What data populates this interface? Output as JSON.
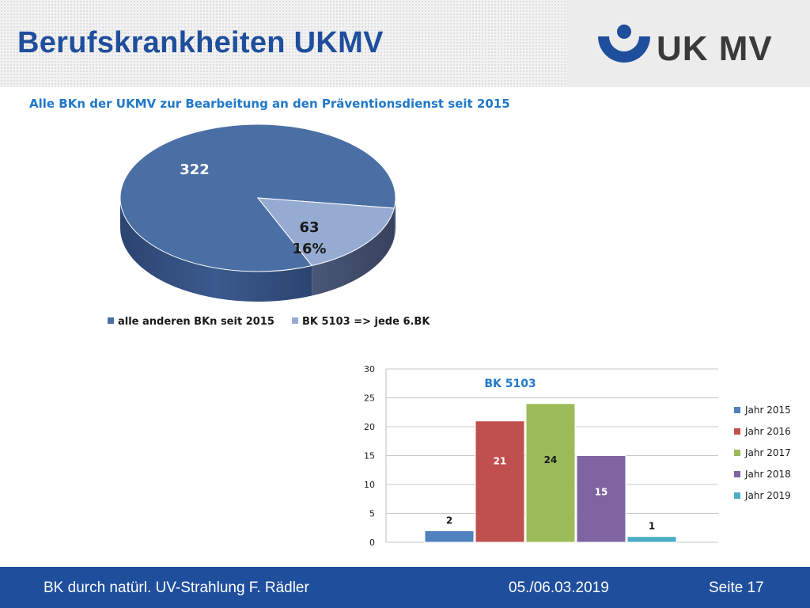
{
  "header": {
    "title": "Berufskrankheiten UKMV",
    "logo_text": "UK MV"
  },
  "subtitle": "Alle BKn der UKMV zur Bearbeitung an den Präventionsdienst seit 2015",
  "chart_data": [
    {
      "type": "pie",
      "title": "",
      "slices": [
        {
          "label": "alle anderen BKn seit 2015",
          "value": 322,
          "value_label": "322",
          "color": "#4a6fa5"
        },
        {
          "label": "BK 5103 => jede 6.BK",
          "value": 63,
          "value_label": "63",
          "percent_label": "16%",
          "color": "#95abd1"
        }
      ],
      "legend_position": "bottom"
    },
    {
      "type": "bar",
      "title": "BK 5103",
      "categories": [
        "Jahr 2015",
        "Jahr 2016",
        "Jahr 2017",
        "Jahr 2018",
        "Jahr 2019"
      ],
      "values": [
        2,
        21,
        24,
        15,
        1
      ],
      "value_labels": [
        "2",
        "21",
        "24",
        "15",
        "1"
      ],
      "colors": [
        "#4f81bd",
        "#c0504d",
        "#9bbb59",
        "#8064a2",
        "#4bacc6"
      ],
      "ylim": [
        0,
        30
      ],
      "yticks": [
        "0",
        "5",
        "10",
        "15",
        "20",
        "25",
        "30"
      ],
      "grid": true,
      "legend_position": "right"
    }
  ],
  "footer": {
    "left": "BK durch natürl. UV-Strahlung  F. Rädler",
    "date": "05./06.03.2019",
    "page": "Seite 17"
  }
}
